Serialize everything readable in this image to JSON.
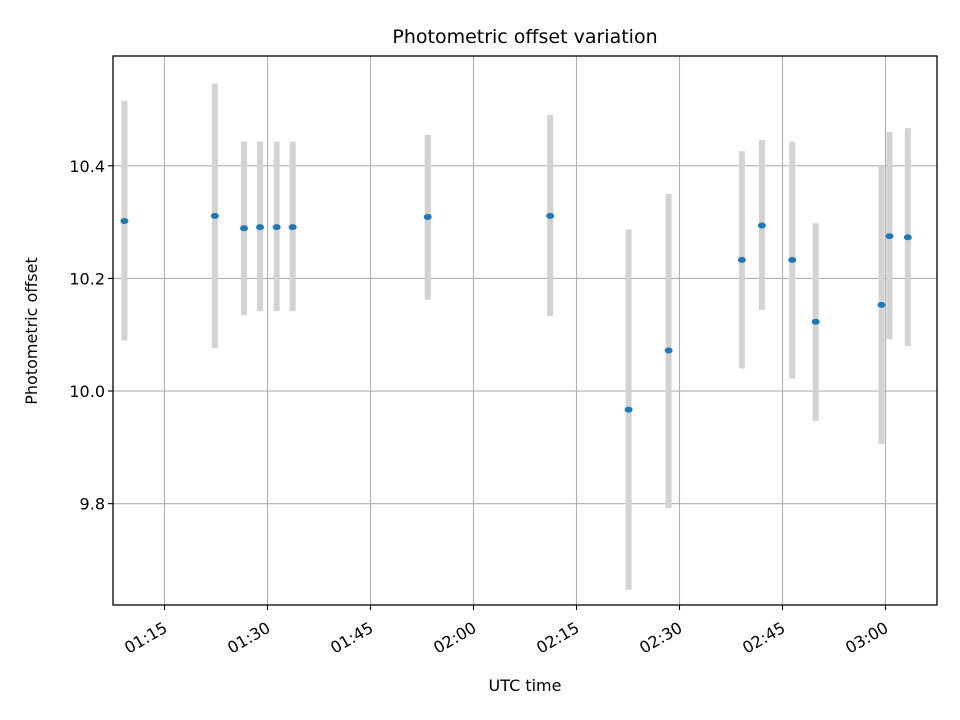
{
  "chart_data": {
    "type": "scatter",
    "title": "Photometric offset variation",
    "xlabel": "UTC time",
    "ylabel": "Photometric offset",
    "x_axis_kind": "time",
    "x_ticks": [
      "01:15",
      "01:30",
      "01:45",
      "02:00",
      "02:15",
      "02:30",
      "02:45",
      "03:00"
    ],
    "y_ticks": [
      "9.8",
      "10.0",
      "10.2",
      "10.4"
    ],
    "xlim": [
      "01:07:30",
      "03:07:30"
    ],
    "ylim": [
      9.62,
      10.595
    ],
    "grid": true,
    "marker_color": "#1f77b4",
    "errorbar_color": "#d3d3d3",
    "points": [
      {
        "x": "01:09:10",
        "y": 10.302,
        "y_low": 10.09,
        "y_high": 10.515
      },
      {
        "x": "01:22:20",
        "y": 10.311,
        "y_low": 10.076,
        "y_high": 10.546
      },
      {
        "x": "01:26:35",
        "y": 10.289,
        "y_low": 10.135,
        "y_high": 10.443
      },
      {
        "x": "01:28:55",
        "y": 10.291,
        "y_low": 10.142,
        "y_high": 10.443
      },
      {
        "x": "01:31:20",
        "y": 10.291,
        "y_low": 10.142,
        "y_high": 10.443
      },
      {
        "x": "01:33:40",
        "y": 10.291,
        "y_low": 10.142,
        "y_high": 10.443
      },
      {
        "x": "01:53:20",
        "y": 10.309,
        "y_low": 10.162,
        "y_high": 10.455
      },
      {
        "x": "02:11:10",
        "y": 10.311,
        "y_low": 10.133,
        "y_high": 10.49
      },
      {
        "x": "02:22:35",
        "y": 9.967,
        "y_low": 9.647,
        "y_high": 10.287
      },
      {
        "x": "02:28:25",
        "y": 10.072,
        "y_low": 9.792,
        "y_high": 10.35
      },
      {
        "x": "02:39:05",
        "y": 10.233,
        "y_low": 10.04,
        "y_high": 10.426
      },
      {
        "x": "02:42:00",
        "y": 10.294,
        "y_low": 10.144,
        "y_high": 10.446
      },
      {
        "x": "02:46:25",
        "y": 10.233,
        "y_low": 10.022,
        "y_high": 10.443
      },
      {
        "x": "02:49:50",
        "y": 10.123,
        "y_low": 9.947,
        "y_high": 10.298
      },
      {
        "x": "02:59:25",
        "y": 10.153,
        "y_low": 9.906,
        "y_high": 10.4
      },
      {
        "x": "03:00:35",
        "y": 10.275,
        "y_low": 10.092,
        "y_high": 10.46
      },
      {
        "x": "03:03:15",
        "y": 10.273,
        "y_low": 10.08,
        "y_high": 10.467
      }
    ]
  }
}
